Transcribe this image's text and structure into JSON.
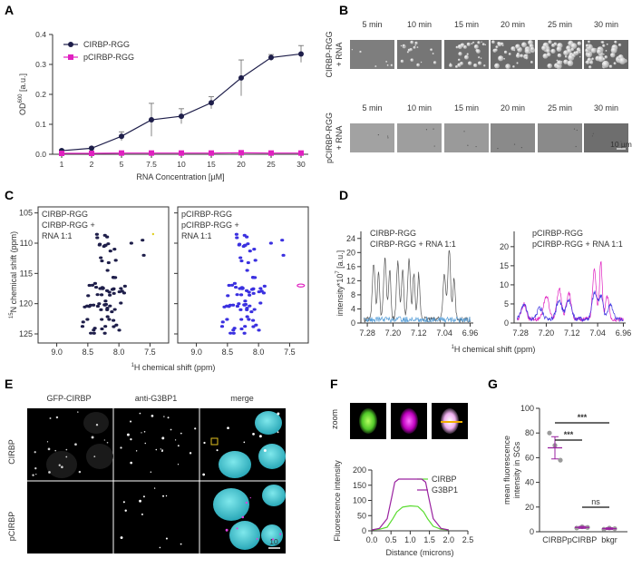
{
  "panel_letters": [
    "A",
    "B",
    "C",
    "D",
    "E",
    "F",
    "G"
  ],
  "colors": {
    "rgg": "#1e1e4a",
    "prgg": "#e020c0",
    "light_blue": "#5aa0d8",
    "blue": "#3a30e0",
    "purple": "#9a22a0",
    "green": "#5adc30",
    "cyan": "#40c8d0"
  },
  "chart_data": [
    {
      "panel": "A",
      "type": "line",
      "title": "",
      "xlabel": "RNA Concentration [µM]",
      "ylabel": "OD600 [a.u.]",
      "ylabel_main": "OD",
      "ylabel_sup": "600",
      "ylabel_unit": " [a.u.]",
      "categories": [
        "1",
        "2",
        "5",
        "7.5",
        "10",
        "15",
        "20",
        "25",
        "30"
      ],
      "ylim": [
        0,
        0.4
      ],
      "yticks": [
        "0.0",
        "0.1",
        "0.2",
        "0.3",
        "0.4"
      ],
      "legend_position": "top-left",
      "series": [
        {
          "name": "CIRBP-RGG",
          "values": [
            0.012,
            0.02,
            0.06,
            0.115,
            0.127,
            0.172,
            0.255,
            0.323,
            0.335
          ],
          "errors": [
            0.003,
            0.004,
            0.015,
            0.055,
            0.025,
            0.02,
            0.06,
            0.01,
            0.028
          ]
        },
        {
          "name": "pCIRBP-RGG",
          "values": [
            0.003,
            0.003,
            0.004,
            0.004,
            0.004,
            0.004,
            0.005,
            0.004,
            0.004
          ],
          "errors": [
            0.001,
            0.001,
            0.001,
            0.001,
            0.001,
            0.001,
            0.001,
            0.001,
            0.001
          ]
        }
      ]
    },
    {
      "panel": "C",
      "type": "scatter",
      "xlabel": "1H chemical shift (ppm)",
      "xlabel_sup": "1",
      "xlabel_rest": "H chemical shift (ppm)",
      "ylabel": "15N chemical shift (ppm)",
      "ylabel_sup": "15",
      "ylabel_rest": "N chemical shift (ppm)",
      "xticks": [
        "9.0",
        "8.5",
        "8.0",
        "7.5"
      ],
      "yticks": [
        "105",
        "110",
        "115",
        "120",
        "125"
      ],
      "left_legend": [
        "CIRBP-RGG",
        "CIRBP-RGG +",
        "RNA 1:1"
      ],
      "right_legend": [
        "pCIRBP-RGG",
        "pCIRBP-RGG +",
        "RNA 1:1"
      ]
    },
    {
      "panel": "D",
      "type": "line",
      "xlabel": "1H chemical shift (ppm)",
      "xlabel_sup": "1",
      "xlabel_rest": "H chemical shift (ppm)",
      "ylabel": "intensity*10^7 [a.u.]",
      "ylabel_main": "intensity*10",
      "ylabel_sup": "7",
      "ylabel_unit": " [a.u.]",
      "xticks": [
        "7.28",
        "7.20",
        "7.12",
        "7.04",
        "6.96"
      ],
      "left_yticks": [
        "0",
        "4",
        "8",
        "12",
        "16",
        "20",
        "24"
      ],
      "right_yticks": [
        "0",
        "5",
        "10",
        "15",
        "20"
      ],
      "left_legend": [
        "CIRBP-RGG",
        "CIRBP-RGG + RNA 1:1"
      ],
      "right_legend": [
        "pCIRBP-RGG",
        "pCIRBP-RGG + RNA 1:1"
      ]
    },
    {
      "panel": "F",
      "type": "line",
      "xlabel": "Distance (microns)",
      "ylabel": "Fluorescence intensity",
      "xticks": [
        "0.0",
        "0.5",
        "1.0",
        "1.5",
        "2.0",
        "2.5"
      ],
      "yticks": [
        "0",
        "50",
        "100",
        "150",
        "200"
      ],
      "legend_position": "top-right",
      "series": [
        {
          "name": "CIRBP",
          "x": [
            0,
            0.2,
            0.4,
            0.55,
            0.65,
            0.8,
            1.0,
            1.2,
            1.35,
            1.45,
            1.6,
            1.8,
            2.0
          ],
          "values": [
            3,
            5,
            12,
            40,
            62,
            78,
            82,
            80,
            62,
            40,
            15,
            5,
            3
          ]
        },
        {
          "name": "G3BP1",
          "x": [
            0,
            0.2,
            0.4,
            0.52,
            0.6,
            0.7,
            1.0,
            1.3,
            1.4,
            1.48,
            1.6,
            1.8,
            2.0
          ],
          "values": [
            3,
            8,
            40,
            110,
            160,
            170,
            170,
            170,
            160,
            110,
            40,
            8,
            3
          ]
        }
      ]
    },
    {
      "panel": "G",
      "type": "scatter",
      "ylabel": "mean fluorescence intensity in SGs",
      "ylabel_lines": [
        "mean fluorescence",
        "intensity in SGs"
      ],
      "categories": [
        "CIRBP",
        "pCIRBP",
        "bkgr"
      ],
      "ylim": [
        0,
        100
      ],
      "yticks": [
        "0",
        "20",
        "40",
        "60",
        "80",
        "100"
      ],
      "means": [
        68,
        3.5,
        2.5
      ],
      "sem": [
        9,
        0.8,
        0.7
      ],
      "points": [
        [
          80,
          70,
          58
        ],
        [
          3,
          4,
          3.5
        ],
        [
          2,
          3,
          2.5
        ]
      ],
      "significance": [
        "***",
        "***",
        "ns"
      ]
    }
  ],
  "panel_b": {
    "times": [
      "5 min",
      "10 min",
      "15 min",
      "20 min",
      "25 min",
      "30 min"
    ],
    "row_labels": [
      [
        "CIRBP-RGG",
        "+ RNA"
      ],
      [
        "pCIRBP-RGG",
        "+ RNA"
      ]
    ],
    "scale_bar": "10 µm"
  },
  "panel_e": {
    "columns": [
      "GFP-CIRBP",
      "anti-G3BP1",
      "merge"
    ],
    "rows": [
      "CIRBP",
      "pCIRBP"
    ],
    "scale_bar": "10"
  },
  "panel_f": {
    "zoom_label": "zoom"
  }
}
